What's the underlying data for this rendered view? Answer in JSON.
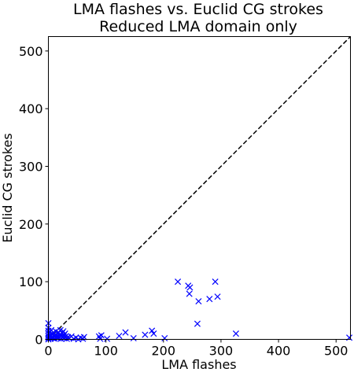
{
  "chart_data": {
    "type": "scatter",
    "title": "LMA flashes vs. Euclid CG strokes",
    "subtitle": "Reduced LMA domain only",
    "xlabel": "LMA flashes",
    "ylabel": "Euclid CG strokes",
    "xlim": [
      0,
      525
    ],
    "ylim": [
      0,
      525
    ],
    "xticks": [
      0,
      100,
      200,
      300,
      400,
      500
    ],
    "yticks": [
      0,
      100,
      200,
      300,
      400,
      500
    ],
    "grid": false,
    "marker": "x",
    "color": "#0000ff",
    "reference_line": {
      "style": "dashed",
      "color": "#000000",
      "from": [
        0,
        0
      ],
      "to": [
        525,
        525
      ]
    },
    "series": [
      {
        "points": [
          [
            0,
            28
          ],
          [
            0,
            20
          ],
          [
            0,
            15
          ],
          [
            0,
            10
          ],
          [
            0,
            6
          ],
          [
            0,
            3
          ],
          [
            0,
            0
          ],
          [
            2,
            12
          ],
          [
            2,
            4
          ],
          [
            3,
            8
          ],
          [
            4,
            1
          ],
          [
            5,
            16
          ],
          [
            5,
            6
          ],
          [
            6,
            3
          ],
          [
            7,
            10
          ],
          [
            8,
            2
          ],
          [
            9,
            12
          ],
          [
            10,
            5
          ],
          [
            11,
            1
          ],
          [
            12,
            8
          ],
          [
            13,
            14
          ],
          [
            14,
            3
          ],
          [
            15,
            6
          ],
          [
            16,
            10
          ],
          [
            17,
            2
          ],
          [
            18,
            12
          ],
          [
            19,
            4
          ],
          [
            20,
            8
          ],
          [
            21,
            16
          ],
          [
            22,
            1
          ],
          [
            23,
            6
          ],
          [
            24,
            11
          ],
          [
            25,
            3
          ],
          [
            26,
            14
          ],
          [
            27,
            7
          ],
          [
            28,
            2
          ],
          [
            29,
            10
          ],
          [
            30,
            5
          ],
          [
            32,
            1
          ],
          [
            34,
            4
          ],
          [
            36,
            2
          ],
          [
            40,
            5
          ],
          [
            44,
            1
          ],
          [
            48,
            3
          ],
          [
            52,
            0
          ],
          [
            56,
            3
          ],
          [
            60,
            1
          ],
          [
            62,
            4
          ],
          [
            88,
            5
          ],
          [
            90,
            1
          ],
          [
            92,
            7
          ],
          [
            102,
            1
          ],
          [
            123,
            6
          ],
          [
            134,
            12
          ],
          [
            148,
            2
          ],
          [
            168,
            8
          ],
          [
            180,
            15
          ],
          [
            183,
            10
          ],
          [
            202,
            2
          ],
          [
            225,
            100
          ],
          [
            243,
            93
          ],
          [
            246,
            90
          ],
          [
            245,
            79
          ],
          [
            259,
            27
          ],
          [
            261,
            66
          ],
          [
            280,
            70
          ],
          [
            290,
            100
          ],
          [
            294,
            74
          ],
          [
            326,
            10
          ],
          [
            523,
            3
          ]
        ]
      }
    ]
  }
}
